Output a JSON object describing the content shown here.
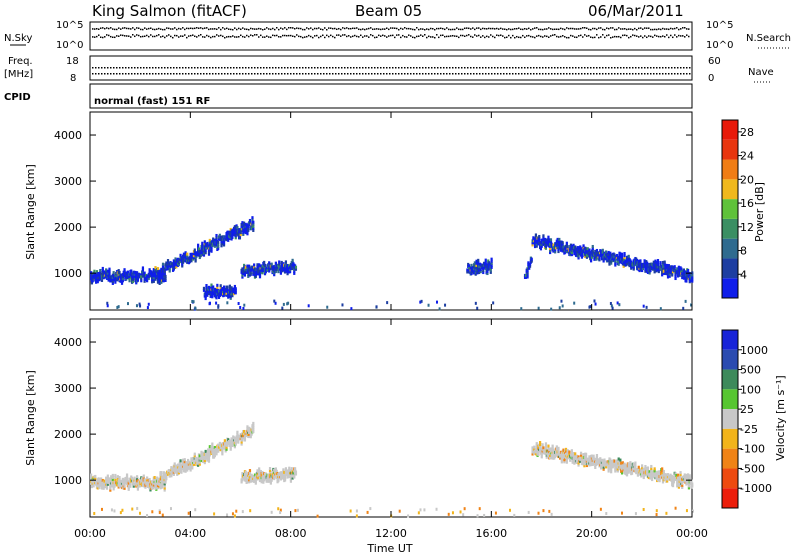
{
  "header": {
    "title_left": "King Salmon (fitACF)",
    "title_center": "Beam 05",
    "title_right": "06/Mar/2011"
  },
  "top_panel": {
    "nsky_label": "N.Sky",
    "nsearch_label": "N.Search",
    "left_ticks": [
      "10^5",
      "10^0"
    ],
    "right_ticks": [
      "10^5",
      "10^0"
    ],
    "freq_label_1": "Freq.",
    "freq_label_2": "[MHz]",
    "freq_ticks": [
      "18",
      "8"
    ],
    "nave_label": "Nave",
    "nave_ticks": [
      "60",
      "0"
    ],
    "cpid_label": "CPID",
    "cpid_text": "normal (fast) 151 RF"
  },
  "xaxis": {
    "label": "Time UT",
    "ticks": [
      "00:00",
      "04:00",
      "08:00",
      "12:00",
      "16:00",
      "20:00",
      "00:00"
    ]
  },
  "colors": {
    "power": [
      "#0f1eea",
      "#1d3ea1",
      "#2f6b8f",
      "#3b8f63",
      "#5fc23a",
      "#f0b81c",
      "#f07d15",
      "#e8350e",
      "#e8190a"
    ],
    "velocity": [
      "#1723d8",
      "#2a4bb0",
      "#3d8a5b",
      "#57c631",
      "#c8c8c8",
      "#f2b41b",
      "#f08316",
      "#ee4a0f",
      "#ec1e0b"
    ]
  },
  "chart_data": [
    {
      "type": "heatmap",
      "title": "",
      "xlabel": "Time UT",
      "ylabel": "Slant Range [km]",
      "xlim_hours": [
        0,
        24
      ],
      "ylim_km": [
        200,
        4500
      ],
      "yticks": [
        "1000",
        "2000",
        "3000",
        "4000"
      ],
      "colorbar": {
        "label": "Power [dB]",
        "ticks": [
          "4",
          "8",
          "12",
          "16",
          "20",
          "24",
          "28"
        ],
        "range": [
          0,
          30
        ]
      },
      "echo_bands": [
        {
          "t0": 0.0,
          "t1": 3.0,
          "r0": 1000,
          "r1": 1000
        },
        {
          "t0": 2.5,
          "t1": 6.5,
          "r0": 1000,
          "r1": 2150
        },
        {
          "t0": 4.5,
          "t1": 5.8,
          "r0": 650,
          "r1": 650
        },
        {
          "t0": 6.0,
          "t1": 8.2,
          "r0": 1100,
          "r1": 1200
        },
        {
          "t0": 17.3,
          "t1": 17.6,
          "r0": 1000,
          "r1": 1350
        },
        {
          "t0": 17.6,
          "t1": 24.0,
          "r0": 1750,
          "r1": 1000
        },
        {
          "t0": 15.0,
          "t1": 16.0,
          "r0": 1150,
          "r1": 1200
        }
      ]
    },
    {
      "type": "heatmap",
      "title": "",
      "xlabel": "Time UT",
      "ylabel": "Slant Range [km]",
      "xlim_hours": [
        0,
        24
      ],
      "ylim_km": [
        200,
        4500
      ],
      "yticks": [
        "1000",
        "2000",
        "3000",
        "4000"
      ],
      "colorbar": {
        "label": "Velocity [m s⁻¹]",
        "ticks": [
          "1000",
          "500",
          "100",
          "25",
          "-25",
          "-100",
          "-500",
          "-1000"
        ]
      },
      "echo_bands": [
        {
          "t0": 0.0,
          "t1": 3.0,
          "r0": 1000,
          "r1": 1000
        },
        {
          "t0": 2.5,
          "t1": 6.5,
          "r0": 1000,
          "r1": 2150
        },
        {
          "t0": 6.0,
          "t1": 8.2,
          "r0": 1100,
          "r1": 1200
        },
        {
          "t0": 17.6,
          "t1": 24.0,
          "r0": 1750,
          "r1": 1000
        }
      ]
    }
  ]
}
